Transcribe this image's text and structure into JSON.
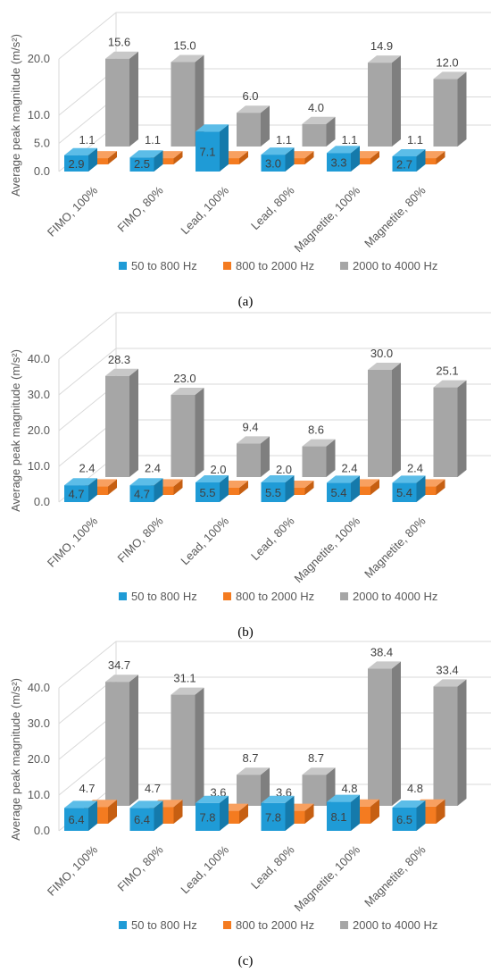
{
  "colors": {
    "series": [
      "#1f9bd6",
      "#f47b20",
      "#a6a6a6"
    ],
    "side": [
      "#157aab",
      "#c65f12",
      "#7f7f7f"
    ],
    "top": [
      "#5cbde8",
      "#f8a060",
      "#c8c8c8"
    ],
    "grid": "#d9d9d9",
    "text": "#595959"
  },
  "chart_data": [
    {
      "type": "bar",
      "panel_label": "(a)",
      "ylabel": "Average peak magnitude (m/s²)",
      "ylim": [
        0,
        20
      ],
      "yticks": [
        "0.0",
        "5.0",
        "10.0",
        "20.0"
      ],
      "ytick_values": [
        0,
        5,
        10,
        20
      ],
      "categories": [
        "FIMO, 100%",
        "FIMO, 80%",
        "Lead, 100%",
        "Lead, 80%",
        "Magnetite, 100%",
        "Magnetite, 80%"
      ],
      "series": [
        {
          "name": "50 to 800 Hz",
          "values": [
            2.9,
            2.5,
            7.1,
            3.0,
            3.3,
            2.7
          ],
          "labels": [
            "2.9",
            "2.5",
            "7.1",
            "3.0",
            "3.3",
            "2.7"
          ]
        },
        {
          "name": "800 to 2000 Hz",
          "values": [
            1.1,
            1.1,
            1.1,
            1.1,
            1.1,
            1.1
          ],
          "labels": [
            "1.1",
            "1.1",
            "1.1",
            "1.1",
            "1.1",
            "1.1"
          ]
        },
        {
          "name": "2000 to 4000 Hz",
          "values": [
            15.6,
            15.0,
            6.0,
            4.0,
            14.9,
            12.0
          ],
          "labels": [
            "15.6",
            "15.0",
            "6.0",
            "4.0",
            "14.9",
            "12.0"
          ]
        }
      ],
      "grid": true,
      "legend": "bottom"
    },
    {
      "type": "bar",
      "panel_label": "(b)",
      "ylabel": "Average peak magnitude (m/s²)",
      "ylim": [
        0,
        40
      ],
      "yticks": [
        "0.0",
        "10.0",
        "20.0",
        "30.0",
        "40.0"
      ],
      "ytick_values": [
        0,
        10,
        20,
        30,
        40
      ],
      "categories": [
        "FIMO, 100%",
        "FIMO, 80%",
        "Lead, 100%",
        "Lead, 80%",
        "Magnetite, 100%",
        "Magnetite, 80%"
      ],
      "series": [
        {
          "name": "50 to 800 Hz",
          "values": [
            4.7,
            4.7,
            5.5,
            5.5,
            5.4,
            5.4
          ],
          "labels": [
            "4.7",
            "4.7",
            "5.5",
            "5.5",
            "5.4",
            "5.4"
          ]
        },
        {
          "name": "800 to 2000 Hz",
          "values": [
            2.4,
            2.4,
            2.0,
            2.0,
            2.4,
            2.4
          ],
          "labels": [
            "2.4",
            "2.4",
            "2.0",
            "2.0",
            "2.4",
            "2.4"
          ]
        },
        {
          "name": "2000 to 4000 Hz",
          "values": [
            28.3,
            23.0,
            9.4,
            8.6,
            30.0,
            25.1
          ],
          "labels": [
            "28.3",
            "23.0",
            "9.4",
            "8.6",
            "30.0",
            "25.1"
          ]
        }
      ],
      "grid": true,
      "legend": "bottom"
    },
    {
      "type": "bar",
      "panel_label": "(c)",
      "ylabel": "Average peak magnitude (m/s²)",
      "ylim": [
        0,
        40
      ],
      "yticks": [
        "0.0",
        "10.0",
        "20.0",
        "30.0",
        "40.0"
      ],
      "ytick_values": [
        0,
        10,
        20,
        30,
        40
      ],
      "categories": [
        "FIMO, 100%",
        "FIMO, 80%",
        "Lead, 100%",
        "Lead, 80%",
        "Magnetite, 100%",
        "Magnetite, 80%"
      ],
      "series": [
        {
          "name": "50 to 800 Hz",
          "values": [
            6.4,
            6.4,
            7.8,
            7.8,
            8.1,
            6.5
          ],
          "labels": [
            "6.4",
            "6.4",
            "7.8",
            "7.8",
            "8.1",
            "6.5"
          ]
        },
        {
          "name": "800 to 2000 Hz",
          "values": [
            4.7,
            4.7,
            3.6,
            3.6,
            4.8,
            4.8
          ],
          "labels": [
            "4.7",
            "4.7",
            "3.6",
            "3.6",
            "4.8",
            "4.8"
          ]
        },
        {
          "name": "2000 to 4000 Hz",
          "values": [
            34.7,
            31.1,
            8.7,
            8.7,
            38.4,
            33.4
          ],
          "labels": [
            "34.7",
            "31.1",
            "8.7",
            "8.7",
            "38.4",
            "33.4"
          ]
        }
      ],
      "grid": true,
      "legend": "bottom"
    }
  ]
}
